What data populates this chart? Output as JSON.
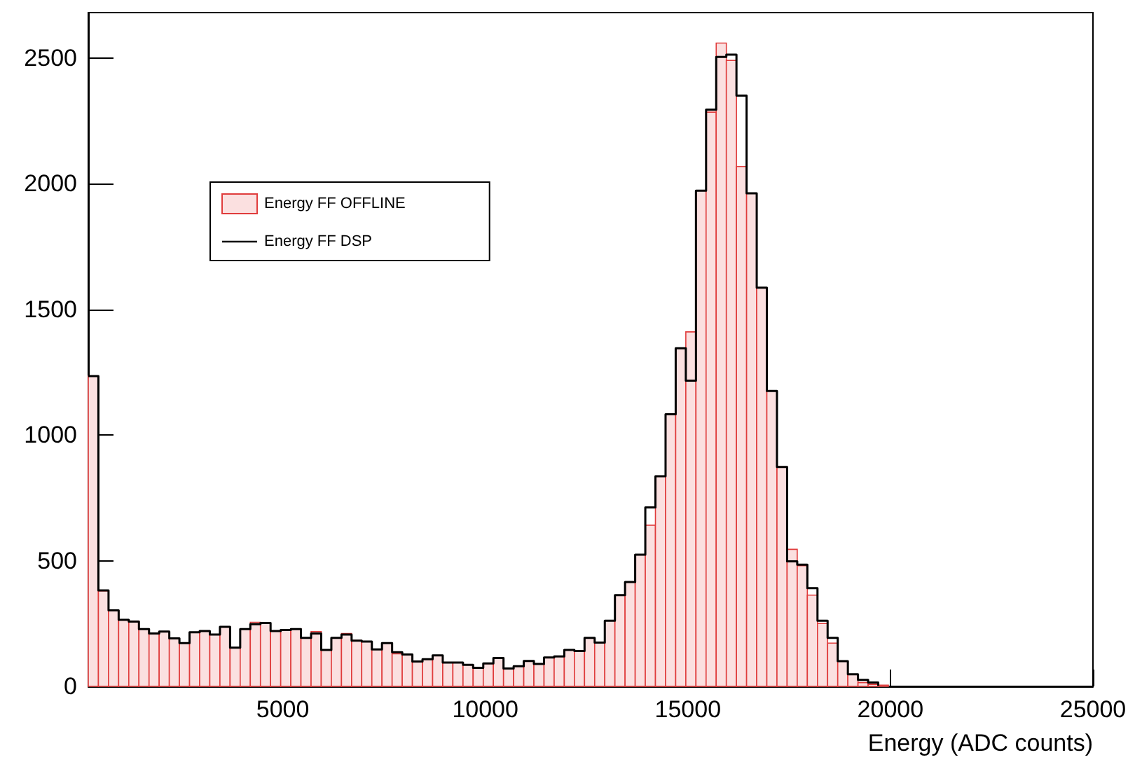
{
  "chart_data": {
    "type": "histogram",
    "xlabel": "Energy (ADC counts)",
    "bins": [
      200,
      450,
      700,
      950,
      1200,
      1450,
      1700,
      1950,
      2200,
      2450,
      2700,
      2950,
      3200,
      3450,
      3700,
      3950,
      4200,
      4450,
      4700,
      4950,
      5200,
      5450,
      5700,
      5950,
      6200,
      6450,
      6700,
      6950,
      7200,
      7450,
      7700,
      7950,
      8200,
      8450,
      8700,
      8950,
      9200,
      9450,
      9700,
      9950,
      10200,
      10450,
      10700,
      10950,
      11200,
      11450,
      11700,
      11950,
      12200,
      12450,
      12700,
      12950,
      13200,
      13450,
      13700,
      13950,
      14200,
      14450,
      14700,
      14950,
      15200,
      15450,
      15700,
      15950,
      16200,
      16450,
      16700,
      16950,
      17200,
      17450,
      17700,
      17950,
      18200,
      18450,
      18700,
      18950,
      19200,
      19450,
      19700,
      19950
    ],
    "series": [
      {
        "name": "Energy FF OFFLINE",
        "color": "#e03c3c",
        "values": [
          1234,
          380,
          300,
          265,
          258,
          228,
          210,
          218,
          191,
          172,
          215,
          220,
          206,
          237,
          154,
          228,
          255,
          252,
          220,
          224,
          228,
          193,
          218,
          145,
          193,
          210,
          182,
          178,
          147,
          172,
          130,
          127,
          99,
          108,
          123,
          95,
          95,
          86,
          74,
          91,
          113,
          71,
          80,
          101,
          89,
          115,
          119,
          145,
          141,
          193,
          174,
          261,
          363,
          415,
          524,
          641,
          836,
          1082,
          1345,
          1410,
          1972,
          2284,
          2559,
          2490,
          2068,
          1961,
          1586,
          1175,
          873,
          545,
          480,
          363,
          250,
          172,
          100,
          48,
          15,
          8,
          5
        ]
      },
      {
        "name": "Energy FF DSP",
        "type": "step",
        "color": "#000000",
        "x": [
          200,
          450,
          700,
          950,
          1200,
          1450,
          1700,
          1950,
          2200,
          2450,
          2700,
          2950,
          3200,
          3450,
          3700,
          3950,
          4200,
          4450,
          4700,
          4950,
          5200,
          5450,
          5700,
          5950,
          6200,
          6450,
          6700,
          6950,
          7200,
          7450,
          7700,
          7950,
          8200,
          8450,
          8700,
          8950,
          9200,
          9450,
          9700,
          9950,
          10200,
          10450,
          10700,
          10950,
          11200,
          11450,
          11700,
          11950,
          12200,
          12450,
          12700,
          12950,
          13200,
          13450,
          13700,
          13950,
          14200,
          14450,
          14700,
          14950,
          15200,
          15450,
          15700,
          15950,
          16200,
          16450,
          16700,
          16950,
          17200,
          17450,
          17700,
          17950,
          18200,
          18450,
          18700,
          18950,
          19200,
          19450,
          19700
        ],
        "values": [
          1234,
          382,
          302,
          265,
          258,
          228,
          210,
          218,
          191,
          172,
          215,
          220,
          206,
          237,
          154,
          228,
          247,
          252,
          220,
          224,
          228,
          193,
          210,
          145,
          193,
          206,
          182,
          178,
          147,
          172,
          136,
          127,
          99,
          108,
          123,
          95,
          95,
          86,
          74,
          91,
          113,
          71,
          80,
          101,
          89,
          115,
          119,
          145,
          141,
          193,
          174,
          261,
          363,
          415,
          524,
          712,
          836,
          1082,
          1345,
          1216,
          1972,
          2294,
          2504,
          2513,
          2350,
          1961,
          1586,
          1175,
          873,
          497,
          484,
          391,
          261,
          193,
          100,
          48,
          26,
          15,
          2
        ]
      }
    ],
    "xlim": [
      200,
      25000
    ],
    "xticks": [
      5000,
      10000,
      15000,
      20000,
      25000
    ],
    "ylim": [
      0,
      2680
    ],
    "yticks": [
      0,
      500,
      1000,
      1500,
      2000,
      2500
    ],
    "grid": false,
    "legend": "top left"
  }
}
